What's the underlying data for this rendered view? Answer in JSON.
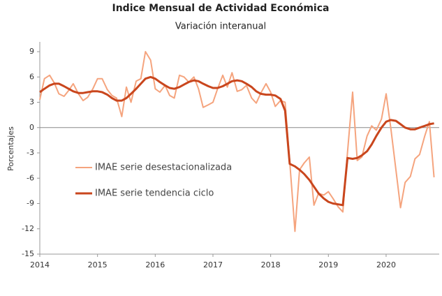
{
  "chart_data": {
    "type": "line",
    "title": "Indice Mensual de  Actividad Económica",
    "subtitle": "Variación interanual",
    "y_label": "Porcentajes",
    "x": [
      2014,
      2014.08,
      2014.17,
      2014.25,
      2014.33,
      2014.42,
      2014.5,
      2014.58,
      2014.67,
      2014.75,
      2014.83,
      2014.92,
      2015,
      2015.08,
      2015.17,
      2015.25,
      2015.33,
      2015.42,
      2015.5,
      2015.58,
      2015.67,
      2015.75,
      2015.83,
      2015.92,
      2016,
      2016.08,
      2016.17,
      2016.25,
      2016.33,
      2016.42,
      2016.5,
      2016.58,
      2016.67,
      2016.75,
      2016.83,
      2016.92,
      2017,
      2017.08,
      2017.17,
      2017.25,
      2017.33,
      2017.42,
      2017.5,
      2017.58,
      2017.67,
      2017.75,
      2017.83,
      2017.92,
      2018,
      2018.08,
      2018.17,
      2018.25,
      2018.33,
      2018.42,
      2018.5,
      2018.58,
      2018.67,
      2018.75,
      2018.83,
      2018.92,
      2019,
      2019.08,
      2019.17,
      2019.25,
      2019.33,
      2019.42,
      2019.5,
      2019.58,
      2019.67,
      2019.75,
      2019.83,
      2019.92,
      2020,
      2020.08,
      2020.17,
      2020.25,
      2020.33,
      2020.42,
      2020.5,
      2020.58,
      2020.67,
      2020.75,
      2020.83
    ],
    "series": [
      {
        "name": "IMAE serie desestacionalizada",
        "color": "#f5a47e",
        "width": 2,
        "values": [
          3.3,
          5.8,
          6.2,
          5.3,
          4.0,
          3.7,
          4.4,
          5.2,
          4.0,
          3.2,
          3.6,
          4.6,
          5.8,
          5.8,
          4.5,
          3.8,
          3.5,
          1.3,
          4.8,
          3.0,
          5.5,
          5.8,
          9.0,
          8.0,
          4.6,
          4.2,
          5.0,
          3.8,
          3.5,
          6.2,
          6.0,
          5.4,
          6.0,
          4.6,
          2.4,
          2.7,
          3.0,
          4.6,
          6.2,
          4.8,
          6.5,
          4.3,
          4.5,
          5.0,
          3.5,
          2.9,
          4.1,
          5.2,
          4.2,
          2.5,
          3.2,
          3.0,
          -4.0,
          -12.3,
          -5.0,
          -4.2,
          -3.5,
          -9.2,
          -7.8,
          -8.0,
          -7.6,
          -8.4,
          -9.4,
          -10.0,
          -3.0,
          4.2,
          -3.9,
          -3.5,
          -1.0,
          0.2,
          -0.3,
          1.0,
          4.0,
          0.0,
          -5.0,
          -9.5,
          -6.5,
          -5.8,
          -3.7,
          -3.2,
          -1.0,
          0.7,
          -5.9
        ]
      },
      {
        "name": "IMAE serie  tendencia ciclo",
        "color": "#c9461d",
        "width": 3,
        "values": [
          4.2,
          4.6,
          5.0,
          5.2,
          5.2,
          4.9,
          4.6,
          4.3,
          4.1,
          4.1,
          4.2,
          4.3,
          4.3,
          4.2,
          3.9,
          3.5,
          3.2,
          3.2,
          3.5,
          4.0,
          4.6,
          5.2,
          5.8,
          6.0,
          5.8,
          5.4,
          5.0,
          4.7,
          4.6,
          4.8,
          5.1,
          5.4,
          5.6,
          5.5,
          5.2,
          4.9,
          4.7,
          4.7,
          4.9,
          5.2,
          5.5,
          5.6,
          5.5,
          5.2,
          4.8,
          4.3,
          4.0,
          3.9,
          3.9,
          3.8,
          3.4,
          2.0,
          -4.3,
          -4.6,
          -5.0,
          -5.5,
          -6.2,
          -7.0,
          -7.8,
          -8.4,
          -8.8,
          -9.0,
          -9.1,
          -9.2,
          -3.6,
          -3.7,
          -3.6,
          -3.3,
          -2.8,
          -2.0,
          -1.0,
          0.0,
          0.7,
          0.9,
          0.8,
          0.4,
          0.0,
          -0.2,
          -0.2,
          0.0,
          0.2,
          0.4,
          0.5
        ]
      }
    ],
    "xlim": [
      2014,
      2020.92
    ],
    "xticks": [
      2014,
      2015,
      2016,
      2017,
      2018,
      2019,
      2020
    ],
    "ylim": [
      -15,
      9
    ],
    "yticks": [
      -15,
      -12,
      -9,
      -6,
      -3,
      0,
      3,
      6,
      9
    ],
    "zero_line": true,
    "grid": false
  }
}
